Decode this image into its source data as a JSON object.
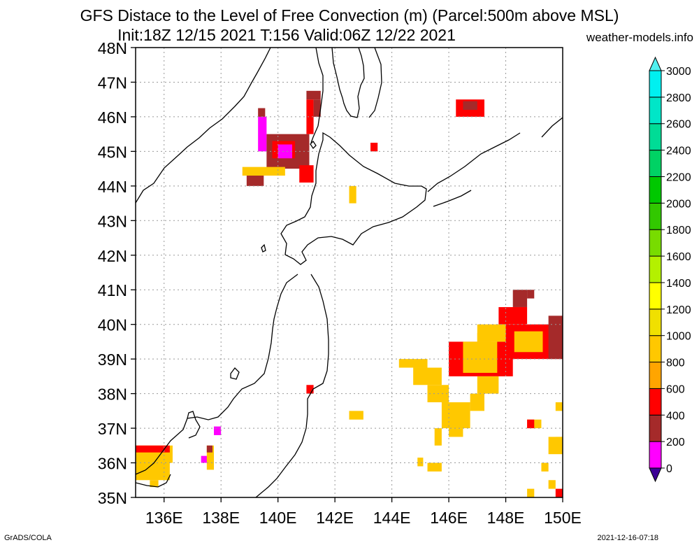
{
  "header": {
    "title_line1": "GFS Distace to the Level of Free Convection (m) (Parcel:500m above MSL)",
    "title_line2": "Init:18Z 12/15 2021 T:156 Valid:06Z 12/22 2021",
    "credit": "weather-models.info"
  },
  "footer": {
    "left": "GrADS/COLA",
    "right": "2021-12-16-07:18"
  },
  "map": {
    "lon_range": [
      135,
      150
    ],
    "lat_range": [
      35,
      48
    ],
    "lon_ticks": [
      "136E",
      "138E",
      "140E",
      "142E",
      "144E",
      "146E",
      "148E",
      "150E"
    ],
    "lon_values": [
      136,
      138,
      140,
      142,
      144,
      146,
      148,
      150
    ],
    "lat_ticks": [
      "35N",
      "36N",
      "37N",
      "38N",
      "39N",
      "40N",
      "41N",
      "42N",
      "43N",
      "44N",
      "45N",
      "46N",
      "47N",
      "48N"
    ],
    "lat_values": [
      35,
      36,
      37,
      38,
      39,
      40,
      41,
      42,
      43,
      44,
      45,
      46,
      47,
      48
    ],
    "grid": true
  },
  "colorbar": {
    "labels": [
      "0",
      "200",
      "400",
      "600",
      "800",
      "1000",
      "1200",
      "1400",
      "1600",
      "1800",
      "2000",
      "2200",
      "2400",
      "2600",
      "2800",
      "3000"
    ],
    "colors": [
      "#3c0096",
      "#ff00ff",
      "#a52a2a",
      "#ff0000",
      "#ffa500",
      "#ffc800",
      "#f0e000",
      "#ffff00",
      "#b4f000",
      "#78dc00",
      "#32c800",
      "#00c800",
      "#00d264",
      "#00dc96",
      "#00e6c8",
      "#00f0f0",
      "#50f0f0"
    ]
  },
  "field": {
    "cells": [
      {
        "lon": 135.0,
        "lat": 36.0,
        "w": 1.3,
        "h": 0.5,
        "v": 900
      },
      {
        "lon": 135.0,
        "lat": 35.5,
        "w": 1.2,
        "h": 0.5,
        "v": 800
      },
      {
        "lon": 135.0,
        "lat": 36.3,
        "w": 1.2,
        "h": 0.2,
        "v": 500
      },
      {
        "lon": 135.5,
        "lat": 35.3,
        "w": 0.3,
        "h": 0.2,
        "v": 900
      },
      {
        "lon": 137.3,
        "lat": 36.0,
        "w": 0.25,
        "h": 0.2,
        "v": 100
      },
      {
        "lon": 137.5,
        "lat": 35.8,
        "w": 0.25,
        "h": 0.7,
        "v": 800
      },
      {
        "lon": 137.5,
        "lat": 36.3,
        "w": 0.2,
        "h": 0.2,
        "v": 300
      },
      {
        "lon": 137.75,
        "lat": 36.8,
        "w": 0.25,
        "h": 0.25,
        "v": 80
      },
      {
        "lon": 139.3,
        "lat": 46.0,
        "w": 0.25,
        "h": 0.25,
        "v": 300
      },
      {
        "lon": 139.3,
        "lat": 45.0,
        "w": 0.3,
        "h": 1.0,
        "v": 150
      },
      {
        "lon": 139.6,
        "lat": 44.5,
        "w": 1.5,
        "h": 1.0,
        "v": 350
      },
      {
        "lon": 139.8,
        "lat": 44.8,
        "w": 0.8,
        "h": 0.5,
        "v": 500
      },
      {
        "lon": 140.0,
        "lat": 44.8,
        "w": 0.5,
        "h": 0.4,
        "v": 150
      },
      {
        "lon": 138.75,
        "lat": 44.3,
        "w": 1.5,
        "h": 0.25,
        "v": 800
      },
      {
        "lon": 138.9,
        "lat": 44.0,
        "w": 0.6,
        "h": 0.3,
        "v": 350
      },
      {
        "lon": 140.75,
        "lat": 44.1,
        "w": 0.5,
        "h": 0.5,
        "v": 500
      },
      {
        "lon": 141.0,
        "lat": 45.5,
        "w": 0.25,
        "h": 1.0,
        "v": 500
      },
      {
        "lon": 141.0,
        "lat": 46.5,
        "w": 0.5,
        "h": 0.25,
        "v": 350
      },
      {
        "lon": 141.25,
        "lat": 46.0,
        "w": 0.25,
        "h": 0.5,
        "v": 350
      },
      {
        "lon": 142.5,
        "lat": 43.5,
        "w": 0.25,
        "h": 0.5,
        "v": 900
      },
      {
        "lon": 143.25,
        "lat": 45.0,
        "w": 0.25,
        "h": 0.25,
        "v": 500
      },
      {
        "lon": 146.25,
        "lat": 46.0,
        "w": 1.0,
        "h": 0.5,
        "v": 500
      },
      {
        "lon": 146.5,
        "lat": 46.2,
        "w": 0.5,
        "h": 0.25,
        "v": 350
      },
      {
        "lon": 148.25,
        "lat": 40.5,
        "w": 0.5,
        "h": 0.5,
        "v": 350
      },
      {
        "lon": 148.75,
        "lat": 40.75,
        "w": 0.25,
        "h": 0.25,
        "v": 350
      },
      {
        "lon": 147.75,
        "lat": 40.0,
        "w": 1.0,
        "h": 0.5,
        "v": 500
      },
      {
        "lon": 146.0,
        "lat": 38.5,
        "w": 2.25,
        "h": 1.0,
        "v": 500
      },
      {
        "lon": 146.5,
        "lat": 38.6,
        "w": 1.2,
        "h": 0.9,
        "v": 900
      },
      {
        "lon": 147.0,
        "lat": 39.5,
        "w": 1.0,
        "h": 0.5,
        "v": 900
      },
      {
        "lon": 148.0,
        "lat": 39.0,
        "w": 2.0,
        "h": 1.0,
        "v": 500
      },
      {
        "lon": 148.3,
        "lat": 39.2,
        "w": 1.0,
        "h": 0.6,
        "v": 800
      },
      {
        "lon": 149.5,
        "lat": 39.0,
        "w": 0.5,
        "h": 1.25,
        "v": 350
      },
      {
        "lon": 144.25,
        "lat": 38.75,
        "w": 1.0,
        "h": 0.25,
        "v": 800
      },
      {
        "lon": 144.75,
        "lat": 38.25,
        "w": 1.0,
        "h": 0.5,
        "v": 900
      },
      {
        "lon": 145.25,
        "lat": 37.75,
        "w": 0.75,
        "h": 0.5,
        "v": 800
      },
      {
        "lon": 145.75,
        "lat": 37.0,
        "w": 1.0,
        "h": 0.75,
        "v": 900
      },
      {
        "lon": 146.75,
        "lat": 37.5,
        "w": 0.5,
        "h": 0.5,
        "v": 900
      },
      {
        "lon": 147.0,
        "lat": 38.0,
        "w": 0.75,
        "h": 0.5,
        "v": 800
      },
      {
        "lon": 145.5,
        "lat": 36.5,
        "w": 0.25,
        "h": 0.5,
        "v": 900
      },
      {
        "lon": 146.0,
        "lat": 36.75,
        "w": 0.5,
        "h": 0.25,
        "v": 900
      },
      {
        "lon": 145.25,
        "lat": 35.75,
        "w": 0.5,
        "h": 0.25,
        "v": 900
      },
      {
        "lon": 144.9,
        "lat": 35.9,
        "w": 0.2,
        "h": 0.25,
        "v": 900
      },
      {
        "lon": 142.5,
        "lat": 37.25,
        "w": 0.5,
        "h": 0.25,
        "v": 800
      },
      {
        "lon": 141.0,
        "lat": 38.0,
        "w": 0.25,
        "h": 0.25,
        "v": 500
      },
      {
        "lon": 148.75,
        "lat": 37.0,
        "w": 0.5,
        "h": 0.25,
        "v": 900
      },
      {
        "lon": 148.75,
        "lat": 37.0,
        "w": 0.25,
        "h": 0.25,
        "v": 500
      },
      {
        "lon": 149.5,
        "lat": 36.25,
        "w": 0.5,
        "h": 0.5,
        "v": 900
      },
      {
        "lon": 149.75,
        "lat": 37.5,
        "w": 0.25,
        "h": 0.25,
        "v": 900
      },
      {
        "lon": 149.75,
        "lat": 36.5,
        "w": 0.25,
        "h": 0.25,
        "v": 900
      },
      {
        "lon": 149.25,
        "lat": 35.75,
        "w": 0.25,
        "h": 0.25,
        "v": 900
      },
      {
        "lon": 149.5,
        "lat": 35.25,
        "w": 0.25,
        "h": 0.25,
        "v": 900
      },
      {
        "lon": 149.75,
        "lat": 35.0,
        "w": 0.25,
        "h": 0.25,
        "v": 500
      },
      {
        "lon": 148.75,
        "lat": 35.0,
        "w": 0.25,
        "h": 0.25,
        "v": 900
      },
      {
        "lon": 147.0,
        "lat": 39.5,
        "w": 0.5,
        "h": 0.25,
        "v": 900
      }
    ]
  }
}
